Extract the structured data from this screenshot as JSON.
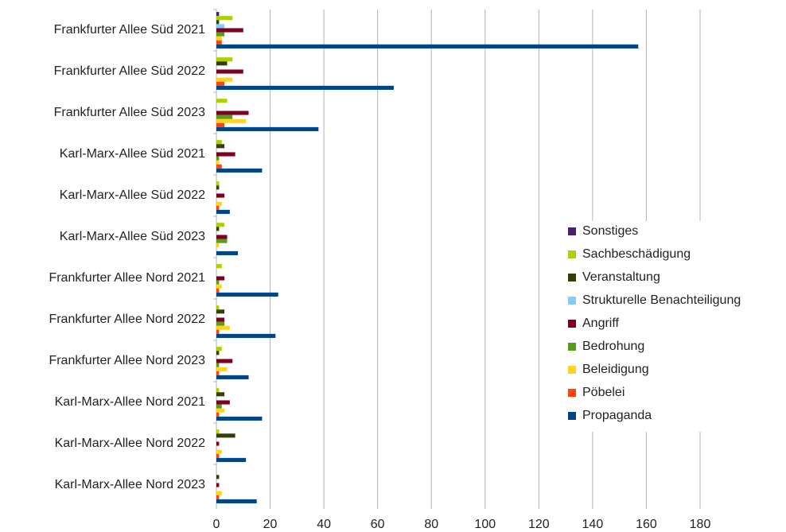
{
  "chart_data": {
    "type": "bar",
    "orientation": "horizontal",
    "categories": [
      "Frankfurter Allee Süd 2021",
      "Frankfurter Allee Süd 2022",
      "Frankfurter Allee Süd 2023",
      "Karl-Marx-Allee Süd 2021",
      "Karl-Marx-Allee Süd 2022",
      "Karl-Marx-Allee Süd 2023",
      "Frankfurter Allee Nord 2021",
      "Frankfurter Allee Nord 2022",
      "Frankfurter Allee Nord 2023",
      "Karl-Marx-Allee Nord 2021",
      "Karl-Marx-Allee Nord 2022",
      "Karl-Marx-Allee Nord 2023"
    ],
    "series": [
      {
        "name": "Sonstiges",
        "color": "#4b1f6f",
        "values": [
          1,
          0,
          0,
          0,
          0,
          0,
          0,
          0,
          0,
          0,
          0,
          0
        ]
      },
      {
        "name": "Sachbeschädigung",
        "color": "#aecf00",
        "values": [
          6,
          6,
          4,
          2,
          1,
          3,
          2,
          1,
          2,
          1,
          1,
          0
        ]
      },
      {
        "name": "Veranstaltung",
        "color": "#314004",
        "values": [
          1,
          4,
          0,
          3,
          1,
          1,
          0,
          3,
          1,
          3,
          7,
          1
        ]
      },
      {
        "name": "Strukturelle Benachteiligung",
        "color": "#83caff",
        "values": [
          3,
          0,
          0,
          0,
          0,
          0,
          0,
          0,
          0,
          0,
          0,
          0
        ]
      },
      {
        "name": "Angriff",
        "color": "#7e0021",
        "values": [
          10,
          10,
          12,
          7,
          3,
          4,
          3,
          3,
          6,
          5,
          1,
          1
        ]
      },
      {
        "name": "Bedrohung",
        "color": "#579d1c",
        "values": [
          3,
          0,
          6,
          1,
          0,
          4,
          1,
          3,
          1,
          2,
          0,
          0
        ]
      },
      {
        "name": "Beleidigung",
        "color": "#ffd320",
        "values": [
          2,
          6,
          11,
          1,
          2,
          1,
          2,
          5,
          4,
          3,
          2,
          2
        ]
      },
      {
        "name": "Pöbelei",
        "color": "#ff420e",
        "values": [
          2,
          3,
          3,
          2,
          1,
          0,
          1,
          1,
          1,
          1,
          1,
          1
        ]
      },
      {
        "name": "Propaganda",
        "color": "#004586",
        "values": [
          157,
          66,
          38,
          17,
          5,
          8,
          23,
          22,
          12,
          17,
          11,
          15
        ]
      }
    ],
    "xlim": [
      0,
      180
    ],
    "xticks": [
      0,
      20,
      40,
      60,
      80,
      100,
      120,
      140,
      160,
      180
    ],
    "grid": true,
    "legend": "right"
  }
}
